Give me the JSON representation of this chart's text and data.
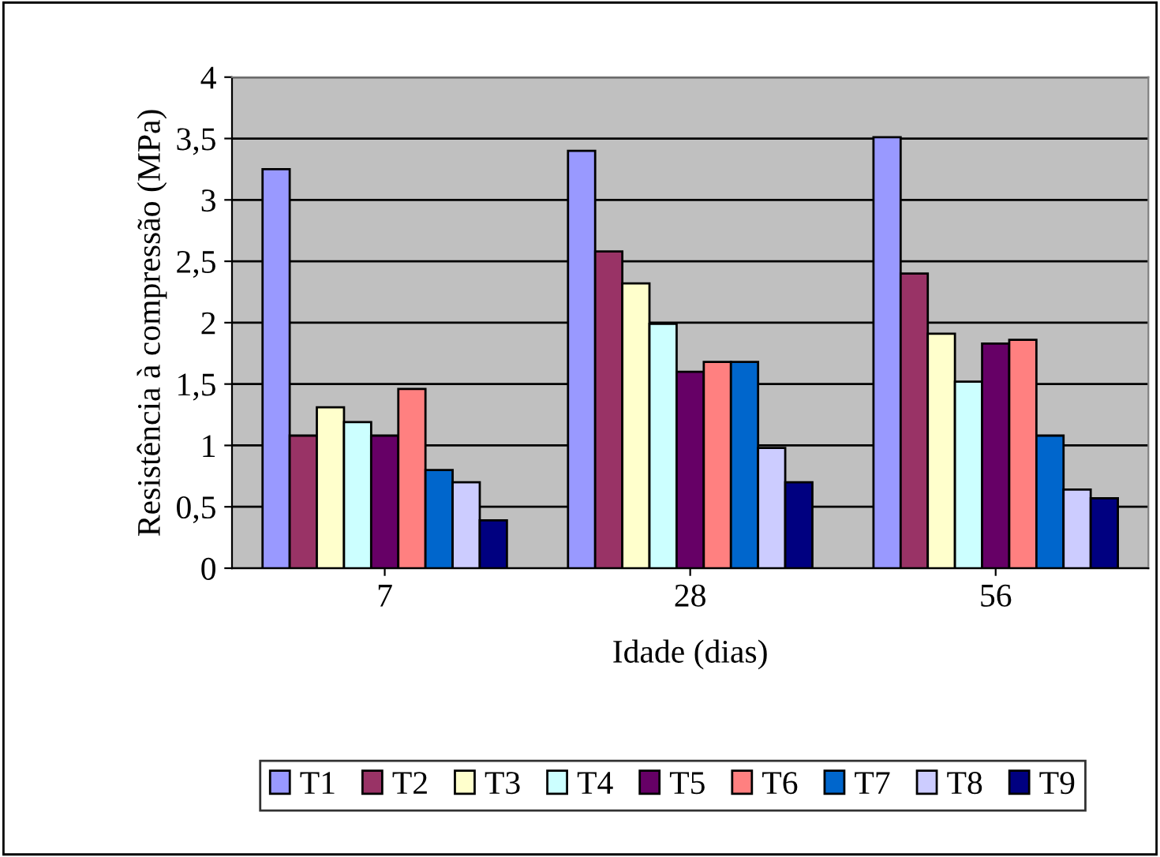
{
  "chart_data": {
    "type": "bar",
    "xlabel": "Idade (dias)",
    "ylabel": "Resistência à compressão (MPa)",
    "categories": [
      "7",
      "28",
      "56"
    ],
    "series": [
      {
        "name": "T1",
        "color": "#9999ff",
        "values": [
          3.25,
          3.4,
          3.51
        ]
      },
      {
        "name": "T2",
        "color": "#993366",
        "values": [
          1.08,
          2.58,
          2.4
        ]
      },
      {
        "name": "T3",
        "color": "#ffffcc",
        "values": [
          1.31,
          2.32,
          1.91
        ]
      },
      {
        "name": "T4",
        "color": "#ccffff",
        "values": [
          1.19,
          1.99,
          1.52
        ]
      },
      {
        "name": "T5",
        "color": "#660066",
        "values": [
          1.08,
          1.6,
          1.83
        ]
      },
      {
        "name": "T6",
        "color": "#ff8080",
        "values": [
          1.46,
          1.68,
          1.86
        ]
      },
      {
        "name": "T7",
        "color": "#0066cc",
        "values": [
          0.8,
          1.68,
          1.08
        ]
      },
      {
        "name": "T8",
        "color": "#ccccff",
        "values": [
          0.7,
          0.98,
          0.64
        ]
      },
      {
        "name": "T9",
        "color": "#000080",
        "values": [
          0.39,
          0.7,
          0.57
        ]
      }
    ],
    "ylim": [
      0,
      4
    ],
    "yticks": [
      0,
      {
        "value": 0.5,
        "label": "0,5"
      },
      1,
      {
        "value": 1.5,
        "label": "1,5"
      },
      2,
      {
        "value": 2.5,
        "label": "2,5"
      },
      3,
      {
        "value": 3.5,
        "label": "3,5"
      },
      4
    ],
    "grid": "y",
    "legend": "bottom"
  }
}
